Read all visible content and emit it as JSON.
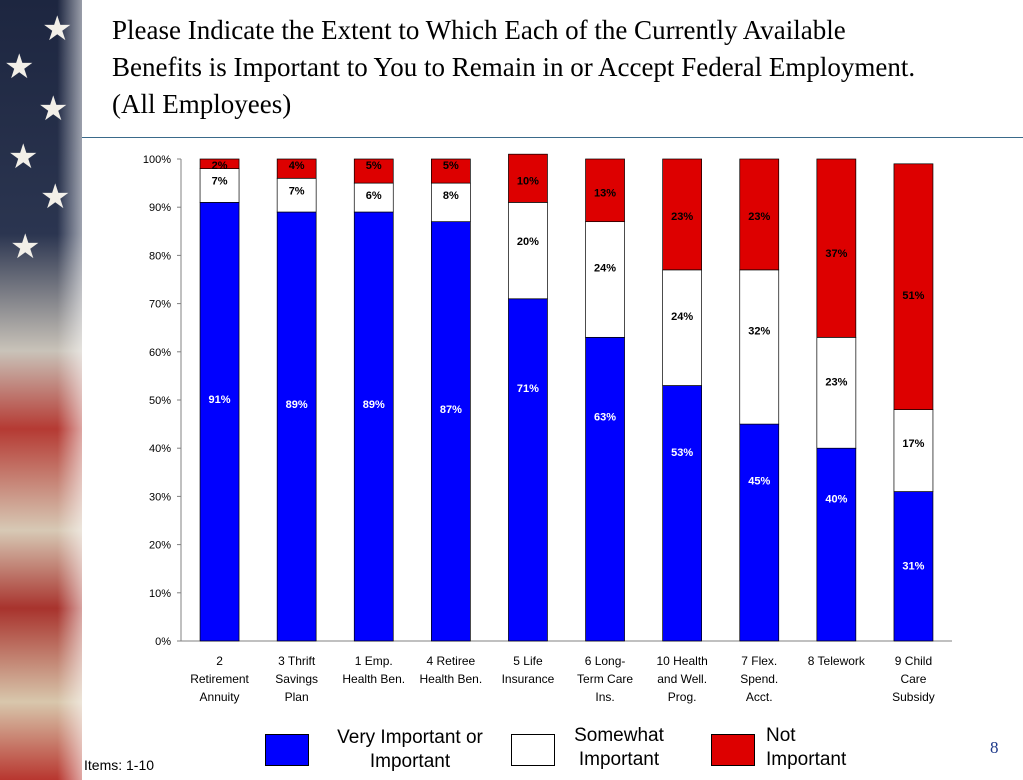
{
  "slide": {
    "title_lines": [
      "Please Indicate the Extent to Which Each of the Currently Available",
      "Benefits is Important to You to Remain in or Accept Federal Employment.",
      "(All Employees)"
    ],
    "footer_items": "Items: 1-10",
    "page_number": "8",
    "decor_icon": "american-flag-stars-icon"
  },
  "legend": [
    {
      "lines": [
        "Very Important or",
        "Important"
      ],
      "color": "#0000ff"
    },
    {
      "lines": [
        "Somewhat",
        "Important"
      ],
      "color": "#ffffff"
    },
    {
      "lines": [
        "Not",
        "Important"
      ],
      "color": "#dd0000"
    }
  ],
  "chart_data": {
    "type": "bar",
    "stacked": true,
    "percent_stacked": true,
    "title": "Please Indicate the Extent to Which Each of the Currently Available Benefits is Important to You to Remain in or Accept Federal Employment. (All Employees)",
    "xlabel": "",
    "ylabel": "",
    "ylim": [
      0,
      100
    ],
    "y_ticks": [
      "0%",
      "10%",
      "20%",
      "30%",
      "40%",
      "50%",
      "60%",
      "70%",
      "80%",
      "90%",
      "100%"
    ],
    "grid": false,
    "legend_position": "bottom",
    "categories": [
      [
        "2",
        "Retirement",
        "Annuity"
      ],
      [
        "3 Thrift",
        "Savings",
        "Plan"
      ],
      [
        "1 Emp.",
        "Health Ben."
      ],
      [
        "4 Retiree",
        "Health Ben."
      ],
      [
        "5 Life",
        "Insurance"
      ],
      [
        "6 Long-",
        "Term Care",
        "Ins."
      ],
      [
        "10 Health",
        "and Well.",
        "Prog."
      ],
      [
        "7 Flex.",
        "Spend.",
        "Acct."
      ],
      [
        "8 Telework"
      ],
      [
        "9 Child",
        "Care",
        "Subsidy"
      ]
    ],
    "series": [
      {
        "name": "Very Important or Important",
        "color": "#0000ff",
        "label_color": "#ffffff",
        "values": [
          91,
          89,
          89,
          87,
          71,
          63,
          53,
          45,
          40,
          31
        ],
        "labels": [
          "91%",
          "89%",
          "89%",
          "87%",
          "71%",
          "63%",
          "53%",
          "45%",
          "40%",
          "31%"
        ]
      },
      {
        "name": "Somewhat Important",
        "color": "#ffffff",
        "label_color": "#000000",
        "values": [
          7,
          7,
          6,
          8,
          20,
          24,
          24,
          32,
          23,
          17
        ],
        "labels": [
          "7%",
          "7%",
          "6%",
          "8%",
          "20%",
          "24%",
          "24%",
          "32%",
          "23%",
          "17%"
        ]
      },
      {
        "name": "Not Important",
        "color": "#dd0000",
        "label_color": "#000000",
        "values": [
          2,
          4,
          5,
          5,
          10,
          13,
          23,
          23,
          37,
          51
        ],
        "labels": [
          "2%",
          "4%",
          "5%",
          "5%",
          "10%",
          "13%",
          "23%",
          "23%",
          "37%",
          "51%"
        ]
      }
    ]
  }
}
